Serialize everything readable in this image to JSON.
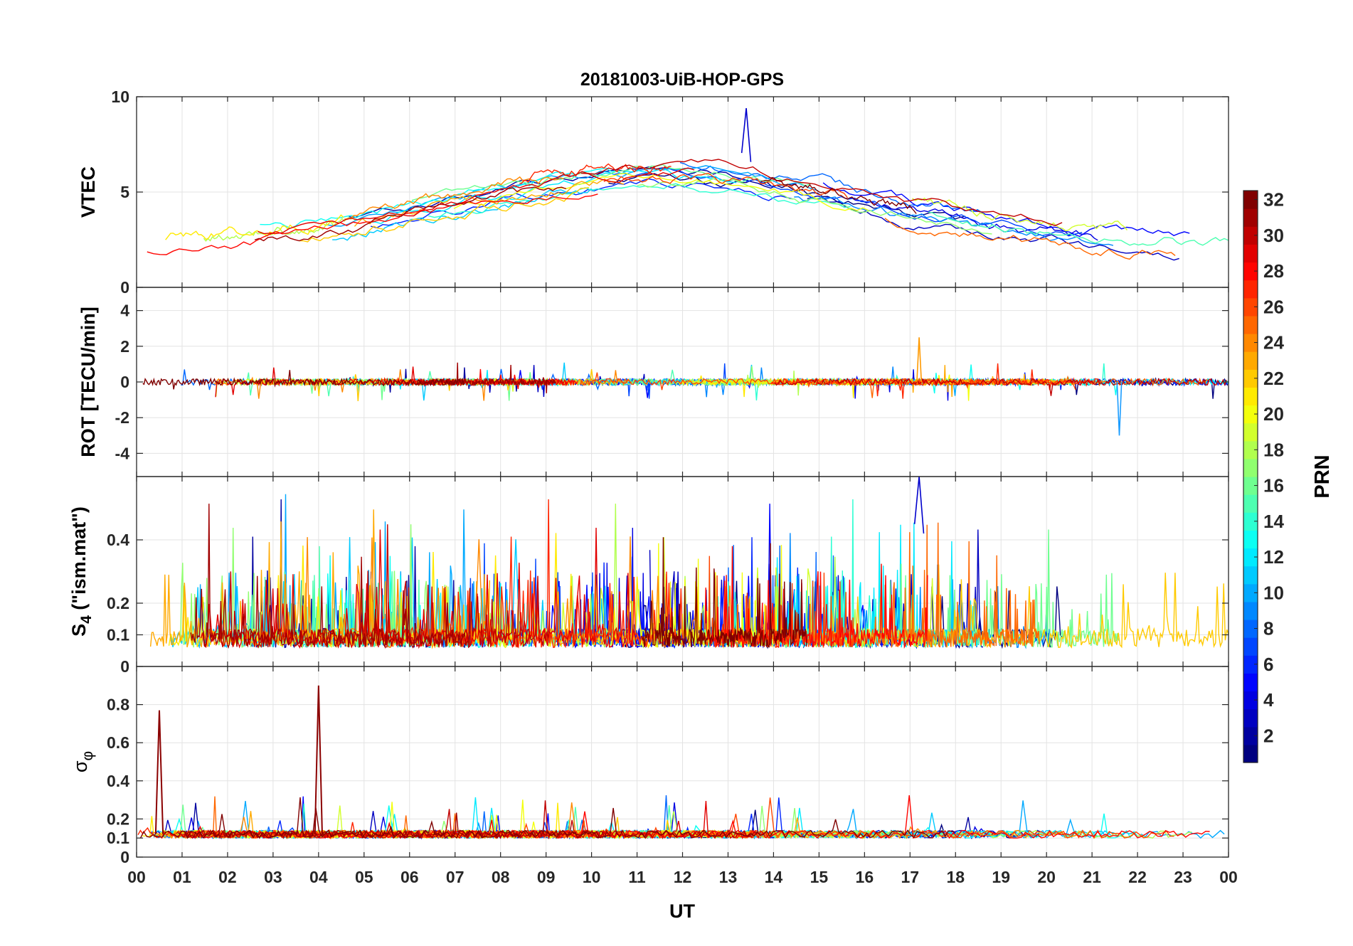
{
  "chart_data": {
    "type": "line",
    "title": "20181003-UiB-HOP-GPS",
    "xlabel": "UT",
    "x_range_hours": [
      0,
      24
    ],
    "x_tick_labels": [
      "00",
      "01",
      "02",
      "03",
      "04",
      "05",
      "06",
      "07",
      "08",
      "09",
      "10",
      "11",
      "12",
      "13",
      "14",
      "15",
      "16",
      "17",
      "18",
      "19",
      "20",
      "21",
      "22",
      "23",
      "00"
    ],
    "panels": [
      {
        "name": "vtec",
        "ylabel": "VTEC",
        "ylim": [
          0,
          10
        ],
        "y_ticks": [
          0,
          5,
          10
        ],
        "y_tick_labels": [
          "0",
          "5",
          "10"
        ],
        "series_description": "VTEC per PRN, about 1.2-9.5 TECU; broad daytime enhancement peaking near 13-14 UT",
        "sample_peak": {
          "x": 13.4,
          "y": 9.4
        }
      },
      {
        "name": "rot",
        "ylabel": "ROT [TECU/min]",
        "ylim": [
          -5.3,
          5.3
        ],
        "y_ticks": [
          -4,
          -2,
          0,
          2,
          4
        ],
        "y_tick_labels": [
          "-4",
          "-2",
          "0",
          "2",
          "4"
        ],
        "series_description": "Rate of TEC change per PRN, mostly within +/-0.5; spikes up to 2.5 and down to -3",
        "sample_extremes": [
          {
            "x": 17.2,
            "y": 2.5
          },
          {
            "x": 21.6,
            "y": -3.0
          }
        ]
      },
      {
        "name": "s4",
        "ylabel_main": "S",
        "ylabel_sub": "4",
        "ylabel_rest": " (\"ism.mat\")",
        "ylim": [
          0,
          0.6
        ],
        "y_ticks": [
          0,
          0.1,
          0.2,
          0.4
        ],
        "y_tick_labels": [
          "0",
          "0.1",
          "0.2",
          "0.4"
        ],
        "series_description": "S4 amplitude scintillation index per PRN, baseline 0.05-0.15 with bursts above 0.5",
        "sample_peak": {
          "x": 17.2,
          "y": 0.6
        }
      },
      {
        "name": "sigma_phi",
        "ylabel_main": "σ",
        "ylabel_sub": "φ",
        "ylim": [
          0,
          1.0
        ],
        "y_ticks": [
          0,
          0.1,
          0.2,
          0.4,
          0.6,
          0.8
        ],
        "y_tick_labels": [
          "0",
          "0.1",
          "0.2",
          "0.4",
          "0.6",
          "0.8"
        ],
        "series_description": "Phase scintillation index per PRN, baseline about 0.1 with peaks near 0.77 at 00:30 and 0.9 at 04:00",
        "sample_peaks": [
          {
            "x": 0.5,
            "y": 0.77
          },
          {
            "x": 4.0,
            "y": 0.9
          }
        ]
      }
    ],
    "colorbar": {
      "label": "PRN",
      "range": [
        1,
        32
      ],
      "ticks": [
        2,
        4,
        6,
        8,
        10,
        12,
        14,
        16,
        18,
        20,
        22,
        24,
        26,
        28,
        30,
        32
      ],
      "tick_labels": [
        "2",
        "4",
        "6",
        "8",
        "10",
        "12",
        "14",
        "16",
        "18",
        "20",
        "22",
        "24",
        "26",
        "28",
        "30",
        "32"
      ],
      "colormap": "jet"
    },
    "grid": true
  }
}
